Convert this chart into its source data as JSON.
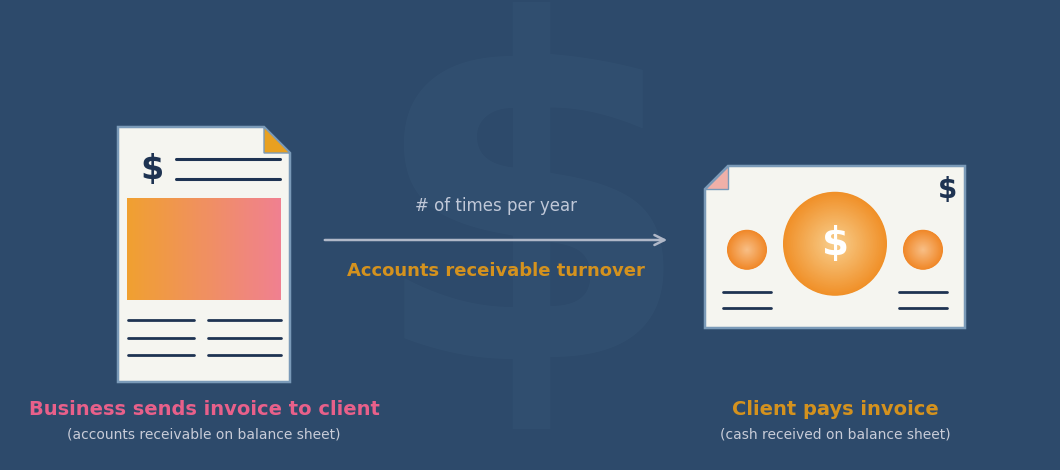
{
  "bg_color": "#2d4a6b",
  "watermark_color": "#3a5a7a",
  "arrow_color": "#b0b8c8",
  "arrow_label_top": "# of times per year",
  "arrow_label_bottom": "Accounts receivable turnover",
  "arrow_label_color": "#d4921e",
  "arrow_text_top_color": "#c0c8d8",
  "left_title": "Business sends invoice to client",
  "left_title_color": "#e8608a",
  "left_subtitle": "(accounts receivable on balance sheet)",
  "left_subtitle_color": "#c8ccd8",
  "right_title": "Client pays invoice",
  "right_title_color": "#d4921e",
  "right_subtitle": "(cash received on balance sheet)",
  "right_subtitle_color": "#c8ccd8",
  "invoice_bg": "#f5f5f0",
  "invoice_border": "#7a9ab8",
  "invoice_dollar_color": "#1e3352",
  "invoice_line_color": "#1e3352",
  "dog_ear_color": "#e8a020",
  "cash_bg": "#f5f5f0",
  "cash_border": "#7a9ab8",
  "cash_dollar_color": "#1e3352",
  "cash_line_color": "#1e3352",
  "cash_dog_ear_color": "#f0b0a8"
}
